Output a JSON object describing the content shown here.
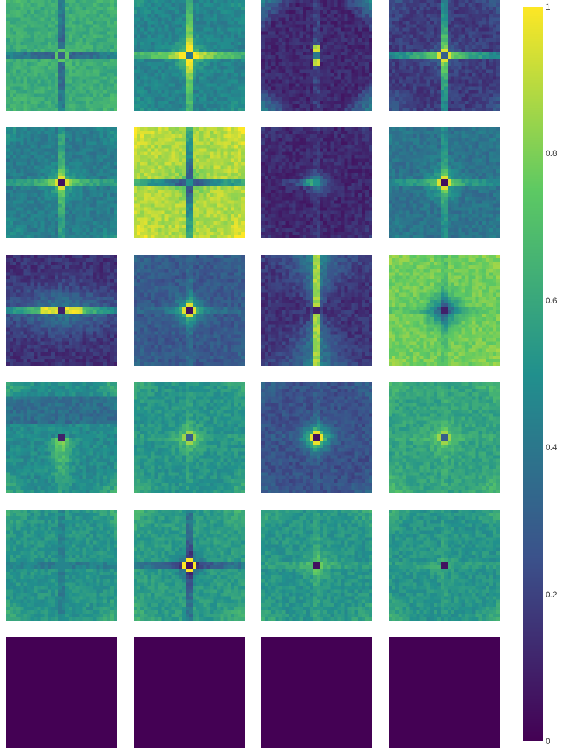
{
  "chart_data": {
    "type": "heatmap",
    "layout": {
      "rows": 6,
      "cols": 4
    },
    "grid_resolution": 32,
    "colormap": "viridis",
    "colors": {
      "min": "#440154",
      "q1": "#3b528b",
      "mid": "#21908d",
      "q3": "#5dc963",
      "max": "#fde725"
    },
    "colorbar": {
      "range": [
        0,
        1
      ],
      "ticks": [
        {
          "value": 0,
          "label": "0"
        },
        {
          "value": 0.2,
          "label": "0.2"
        },
        {
          "value": 0.4,
          "label": "0.4"
        },
        {
          "value": 0.6,
          "label": "0.6"
        },
        {
          "value": 0.8,
          "label": "0.8"
        },
        {
          "value": 1,
          "label": "1"
        }
      ]
    },
    "panels": [
      {
        "index": 1,
        "pattern": "cross",
        "base": 0.62,
        "arm": -0.35,
        "center": 0.75,
        "halo": 0.05,
        "dot": 0.3,
        "corner": 0.05
      },
      {
        "index": 2,
        "pattern": "cross",
        "base": 0.45,
        "arm": 0.4,
        "center": 0.95,
        "halo": 0.25,
        "dot": 0.4,
        "corner": 0.08
      },
      {
        "index": 3,
        "pattern": "vertical-blob",
        "base": 0.12,
        "arm": 0.12,
        "center": 0.9,
        "halo": 0.1,
        "dot": 0.4,
        "corner": 0.35
      },
      {
        "index": 4,
        "pattern": "cross",
        "base": 0.18,
        "arm": 0.55,
        "center": 0.95,
        "halo": 0.15,
        "dot": 0.3,
        "corner": 0.1
      },
      {
        "index": 5,
        "pattern": "cross",
        "base": 0.42,
        "arm": 0.25,
        "center": 0.95,
        "halo": 0.2,
        "dot": 0.05,
        "corner": 0.1
      },
      {
        "index": 6,
        "pattern": "cross",
        "base": 0.88,
        "arm": -0.55,
        "center": 0.3,
        "halo": -0.15,
        "dot": 0.5,
        "corner": 0.1
      },
      {
        "index": 7,
        "pattern": "left-streak",
        "base": 0.12,
        "arm": 0.1,
        "center": 0.95,
        "halo": 0.05,
        "dot": 0.5,
        "corner": 0.05
      },
      {
        "index": 8,
        "pattern": "cross",
        "base": 0.38,
        "arm": 0.2,
        "center": 0.95,
        "halo": 0.25,
        "dot": 0.05,
        "corner": 0.05
      },
      {
        "index": 9,
        "pattern": "horizontal-band",
        "base": 0.15,
        "arm": 0.45,
        "center": 0.95,
        "halo": 0.1,
        "dot": 0.1,
        "corner": 0.0
      },
      {
        "index": 10,
        "pattern": "blob",
        "base": 0.28,
        "arm": 0.1,
        "center": 0.95,
        "halo": 0.35,
        "dot": 0.05,
        "corner": 0.05
      },
      {
        "index": 11,
        "pattern": "hourglass",
        "base": 0.15,
        "arm": 0.65,
        "center": 0.95,
        "halo": 0.05,
        "dot": 0.1,
        "corner": 0.0
      },
      {
        "index": 12,
        "pattern": "inverse-blob",
        "base": 0.78,
        "arm": -0.1,
        "center": 0.1,
        "halo": -0.4,
        "dot": 0.1,
        "corner": 0.05
      },
      {
        "index": 13,
        "pattern": "lower-glow",
        "base": 0.48,
        "arm": 0.1,
        "center": 0.9,
        "halo": 0.2,
        "dot": 0.1,
        "corner": 0.15
      },
      {
        "index": 14,
        "pattern": "blob",
        "base": 0.52,
        "arm": 0.05,
        "center": 0.85,
        "halo": 0.2,
        "dot": 0.3,
        "corner": 0.1
      },
      {
        "index": 15,
        "pattern": "blob",
        "base": 0.25,
        "arm": 0.05,
        "center": 0.97,
        "halo": 0.5,
        "dot": 0.05,
        "corner": 0.08
      },
      {
        "index": 16,
        "pattern": "blob",
        "base": 0.58,
        "arm": 0.05,
        "center": 0.85,
        "halo": 0.15,
        "dot": 0.3,
        "corner": 0.12
      },
      {
        "index": 17,
        "pattern": "cross",
        "base": 0.52,
        "arm": -0.12,
        "center": 0.45,
        "halo": 0.0,
        "dot": 0.45,
        "corner": 0.12
      },
      {
        "index": 18,
        "pattern": "cross",
        "base": 0.55,
        "arm": -0.3,
        "center": 1.0,
        "halo": -0.2,
        "dot": 0.05,
        "corner": 0.1
      },
      {
        "index": 19,
        "pattern": "blob",
        "base": 0.52,
        "arm": 0.08,
        "center": 0.1,
        "halo": 0.15,
        "dot": 0.05,
        "corner": 0.1
      },
      {
        "index": 20,
        "pattern": "blob",
        "base": 0.52,
        "arm": 0.05,
        "center": 0.1,
        "halo": 0.05,
        "dot": 0.05,
        "corner": 0.12
      },
      {
        "index": 21,
        "pattern": "empty",
        "base": 0.0,
        "arm": 0.0,
        "center": 0.0,
        "halo": 0.0,
        "dot": 0.0,
        "corner": 0.0
      },
      {
        "index": 22,
        "pattern": "empty",
        "base": 0.0,
        "arm": 0.0,
        "center": 0.0,
        "halo": 0.0,
        "dot": 0.0,
        "corner": 0.0
      },
      {
        "index": 23,
        "pattern": "empty",
        "base": 0.0,
        "arm": 0.0,
        "center": 0.0,
        "halo": 0.0,
        "dot": 0.0,
        "corner": 0.0
      },
      {
        "index": 24,
        "pattern": "empty",
        "base": 0.0,
        "arm": 0.0,
        "center": 0.0,
        "halo": 0.0,
        "dot": 0.0,
        "corner": 0.0
      }
    ]
  }
}
